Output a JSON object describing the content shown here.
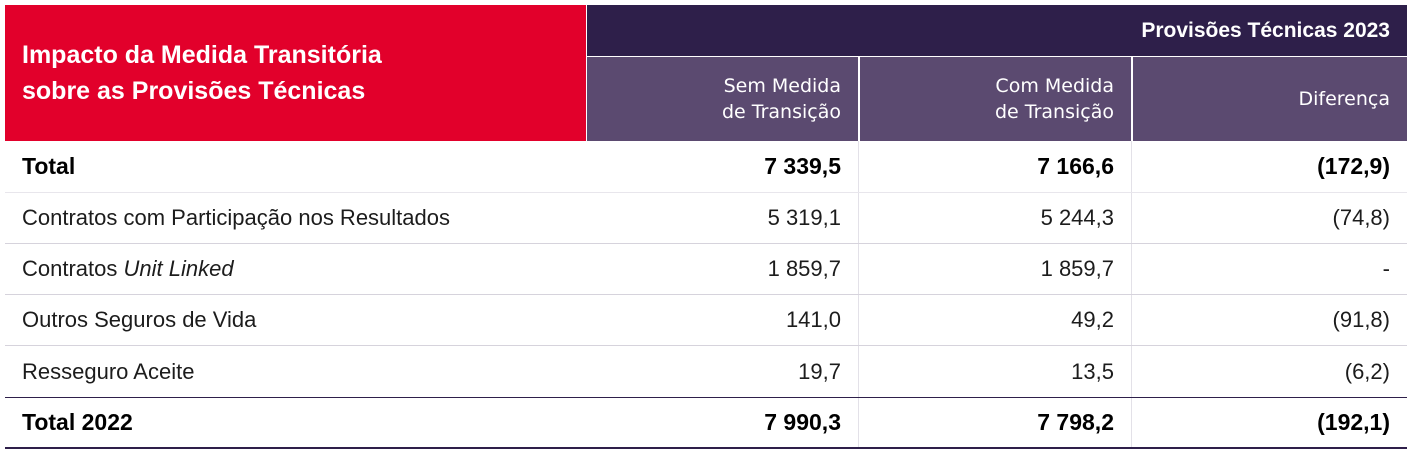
{
  "title": "Impacto da Medida Transitória\nsobre as Provisões Técnicas",
  "group_header": "Provisões Técnicas  2023",
  "columns": [
    "Sem Medida\nde Transição",
    "Com Medida\nde Transição",
    "Diferença"
  ],
  "rows": [
    {
      "label": "Total",
      "sem": "7 339,5",
      "com": "7 166,6",
      "dif": "(172,9)"
    },
    {
      "label_prefix": "Contratos com Participação nos Resultados",
      "sem": "5 319,1",
      "com": "5 244,3",
      "dif": "(74,8)"
    },
    {
      "label_prefix": "Contratos ",
      "label_italic": "Unit Linked",
      "sem": "1 859,7",
      "com": "1 859,7",
      "dif": "-"
    },
    {
      "label_prefix": "Outros Seguros de Vida",
      "sem": "141,0",
      "com": "49,2",
      "dif": "(91,8)"
    },
    {
      "label_prefix": "Resseguro Aceite",
      "sem": "19,7",
      "com": "13,5",
      "dif": "(6,2)"
    },
    {
      "label": "Total 2022",
      "sem": "7 990,3",
      "com": "7 798,2",
      "dif": "(192,1)"
    }
  ]
}
